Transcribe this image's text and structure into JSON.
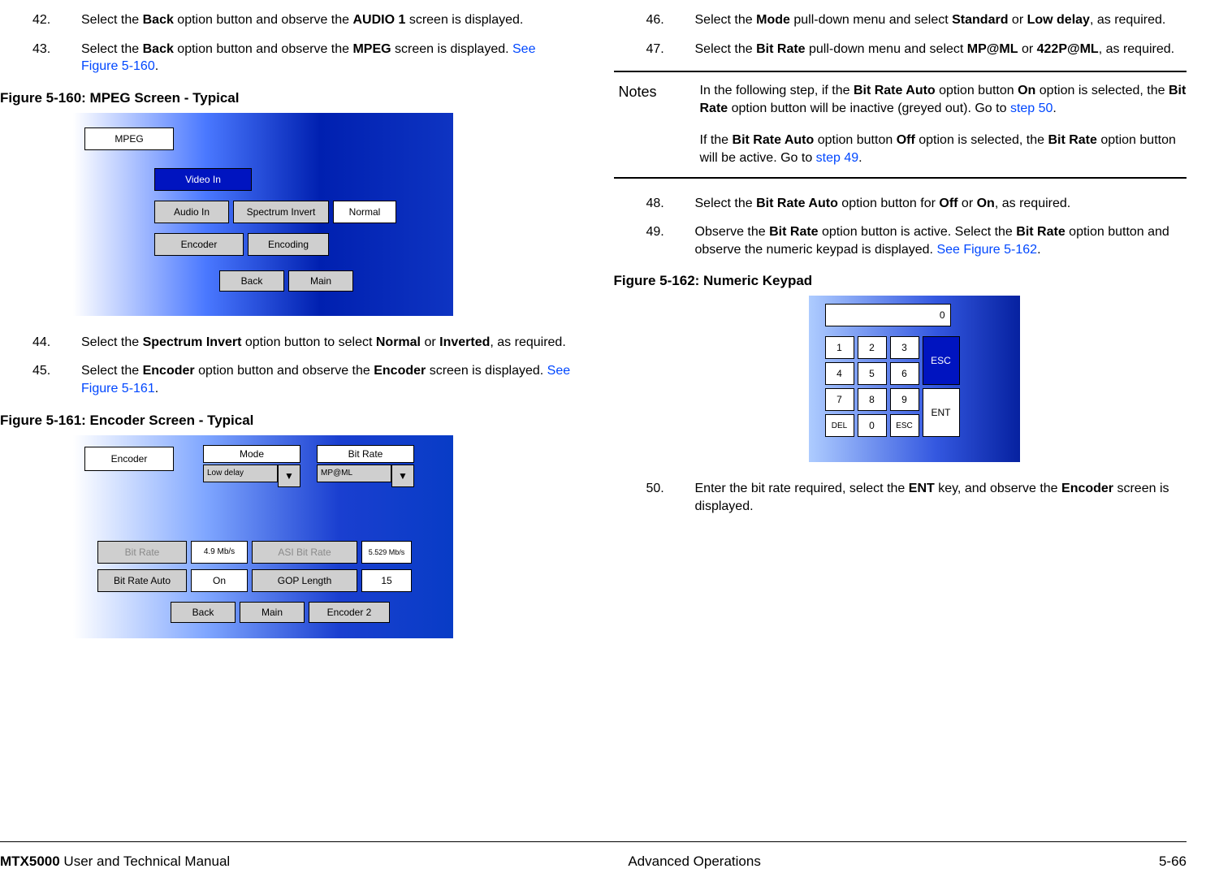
{
  "steps_left": [
    {
      "n": "42.",
      "body": "Select the <b>Back</b> option button and observe the <b>AUDIO 1</b> screen is displayed."
    },
    {
      "n": "43.",
      "body": "Select the <b>Back</b> option button and observe the <b>MPEG</b> screen is displayed.  <span class='linkblue'>See Figure 5-160</span>."
    }
  ],
  "fig160_caption": "Figure 5-160:   MPEG Screen - Typical",
  "mpeg": {
    "title": "MPEG",
    "video": "Video In",
    "audio": "Audio In",
    "spectrum": "Spectrum Invert",
    "normal": "Normal",
    "encoder": "Encoder",
    "encoding": "Encoding",
    "back": "Back",
    "main": "Main"
  },
  "steps_left2": [
    {
      "n": "44.",
      "body": "Select the <b>Spectrum Invert</b> option button to select <b>Normal</b> or <b>Inverted</b>, as required."
    },
    {
      "n": "45.",
      "body": "Select the <b>Encoder</b> option button and observe the <b>Encoder</b> screen is displayed.  <span class='linkblue'>See Figure 5-161</span>."
    }
  ],
  "fig161_caption": "Figure 5-161:   Encoder Screen - Typical",
  "encoder": {
    "title": "Encoder",
    "mode_lbl": "Mode",
    "bitrate_lbl": "Bit Rate",
    "mode_val": "Low delay",
    "bitrate_val": "MP@ML",
    "bitrate_btn": "Bit Rate",
    "bitrate_v": "4.9 Mb/s",
    "asi_lbl": "ASI Bit Rate",
    "asi_v": "5.529 Mb/s",
    "auto_lbl": "Bit Rate Auto",
    "auto_v": "On",
    "gop_lbl": "GOP Length",
    "gop_v": "15",
    "back": "Back",
    "main": "Main",
    "enc2": "Encoder 2"
  },
  "steps_right": [
    {
      "n": "46.",
      "body": "Select the <b>Mode</b> pull-down menu and select <b>Standard</b> or <b>Low delay</b>, as required."
    },
    {
      "n": "47.",
      "body": "Select the <b>Bit Rate</b> pull-down menu and select <b>MP@ML</b> or <b>422P@ML</b>, as required."
    }
  ],
  "note_label": "Notes",
  "note_p1": "In the following step, if the <b>Bit Rate Auto</b> option button <b>On</b> option is selected, the <b>Bit Rate</b> option button will be inactive (greyed out).  Go to <span class='linkblue'>step 50</span>.",
  "note_p2": "If the <b>Bit Rate Auto</b> option button <b>Off</b> option is selected, the <b>Bit Rate</b> option button will be active.  Go to <span class='linkblue'>step 49</span>.",
  "steps_right2": [
    {
      "n": "48.",
      "body": "Select the <b>Bit Rate Auto</b> option button for <b>Off</b> or <b>On</b>, as required."
    },
    {
      "n": "49.",
      "body": "Observe the <b>Bit Rate</b> option button is active.  Select the <b>Bit Rate</b> option button and observe the numeric keypad is displayed.  <span class='linkblue'>See Figure 5-162</span>."
    }
  ],
  "fig162_caption": "Figure 5-162:   Numeric Keypad",
  "keypad": {
    "display": "0",
    "k1": "1",
    "k2": "2",
    "k3": "3",
    "k4": "4",
    "k5": "5",
    "k6": "6",
    "k7": "7",
    "k8": "8",
    "k9": "9",
    "k0": "0",
    "esc": "ESC",
    "ent": "ENT",
    "del": "DEL",
    "esc2": "ESC"
  },
  "steps_right3": [
    {
      "n": "50.",
      "body": "Enter the bit rate required, select the <b>ENT</b> key, and observe the <b>Encoder</b> screen is displayed."
    }
  ],
  "footer": {
    "left": "<b>MTX5000</b> User and Technical Manual",
    "center": "Advanced Operations",
    "right": "5-66"
  }
}
